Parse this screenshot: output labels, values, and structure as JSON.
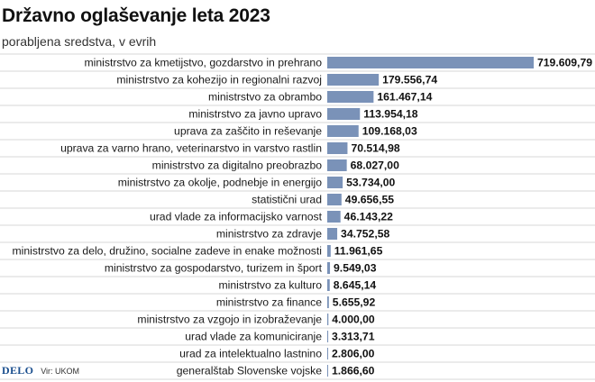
{
  "header": {
    "title": "Državno oglaševanje leta 2023",
    "subtitle": "porabljena sredstva, v evrih"
  },
  "footer": {
    "logo": "DELO",
    "source": "Vir: UKOM"
  },
  "colors": {
    "bar": "#7a92b8",
    "row_line": "#d7d7d7"
  },
  "chart_data": {
    "type": "bar",
    "orientation": "horizontal",
    "title": "Državno oglaševanje leta 2023",
    "subtitle": "porabljena sredstva, v evrih",
    "grid": false,
    "categories": [
      "ministrstvo za kmetijstvo, gozdarstvo in prehrano",
      "ministrstvo za kohezijo in regionalni razvoj",
      "ministrstvo za obrambo",
      "ministrstvo za javno upravo",
      "uprava za zaščito in reševanje",
      "uprava za varno hrano, veterinarstvo in varstvo rastlin",
      "ministrstvo za digitalno preobrazbo",
      "ministrstvo za okolje, podnebje in energijo",
      "statistični urad",
      "urad vlade za informacijsko varnost",
      "ministrstvo za zdravje",
      "ministrstvo za delo, družino, socialne zadeve in enake možnosti",
      "ministrstvo za gospodarstvo, turizem in šport",
      "ministrstvo za kulturo",
      "ministrstvo za finance",
      "ministrstvo za vzgojo in izobraževanje",
      "urad vlade za komuniciranje",
      "urad za intelektualno lastnino",
      "generalštab Slovenske vojske"
    ],
    "values": [
      719609.79,
      179556.74,
      161467.14,
      113954.18,
      109168.03,
      70514.98,
      68027.0,
      53734.0,
      49656.55,
      46143.22,
      34752.58,
      11961.65,
      9549.03,
      8645.14,
      5655.92,
      4000.0,
      3313.71,
      2806.0,
      1866.6
    ],
    "value_labels": [
      "719.609,79",
      "179.556,74",
      "161.467,14",
      "113.954,18",
      "109.168,03",
      "70.514,98",
      "68.027,00",
      "53.734,00",
      "49.656,55",
      "46.143,22",
      "34.752,58",
      "11.961,65",
      "9.549,03",
      "8.645,14",
      "5.655,92",
      "4.000,00",
      "3.313,71",
      "2.806,00",
      "1.866,60"
    ]
  }
}
